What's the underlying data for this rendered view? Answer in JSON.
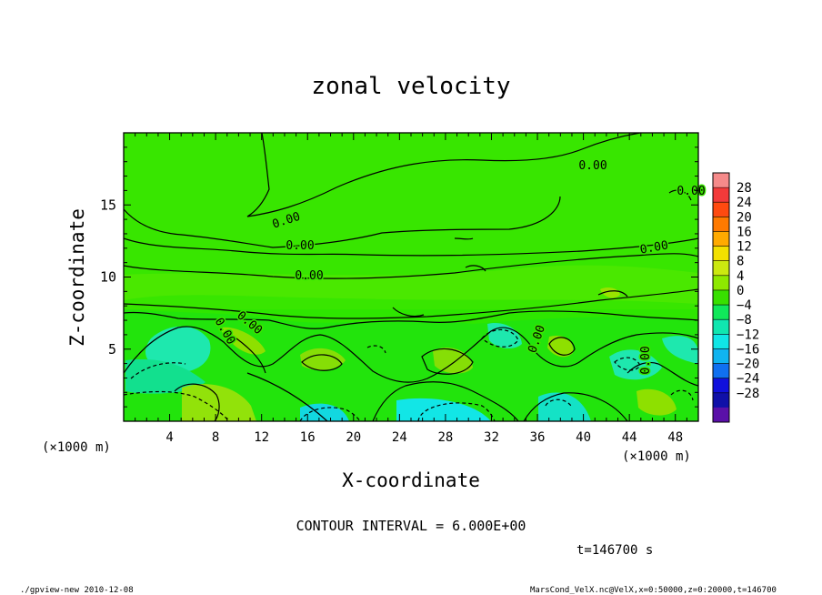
{
  "chart_data": {
    "type": "heatmap",
    "title": "zonal velocity",
    "xlabel": "X-coordinate",
    "ylabel": "Z-coordinate",
    "x_unit": "(×1000 m)",
    "x_unit_right": "(×1000 m)",
    "xlim": [
      0,
      50
    ],
    "ylim": [
      0,
      20
    ],
    "x_ticks": [
      "4",
      "8",
      "12",
      "16",
      "20",
      "24",
      "28",
      "32",
      "36",
      "40",
      "44",
      "48"
    ],
    "y_ticks": [
      "5",
      "10",
      "15"
    ],
    "colorbar": {
      "levels": [
        "28",
        "24",
        "20",
        "16",
        "12",
        "8",
        "4",
        "0",
        "−4",
        "−8",
        "−12",
        "−16",
        "−20",
        "−24",
        "−28"
      ],
      "colors": [
        "#f58a8a",
        "#f23a3a",
        "#ff4a10",
        "#ff7a00",
        "#ffaa00",
        "#f2e000",
        "#cce810",
        "#8ee800",
        "#38e000",
        "#10e85a",
        "#10e6b0",
        "#10e6e6",
        "#10b4f0",
        "#1070f0",
        "#1010dc",
        "#1010a8",
        "#5a10a8"
      ]
    },
    "contour_labels": [
      "0.00",
      "0.00",
      "0.00",
      "0.00",
      "0.00",
      "0.00",
      "0.00",
      "0.00",
      "0.00",
      "0.00"
    ]
  },
  "annotations": {
    "contour_interval": "CONTOUR INTERVAL = 6.000E+00",
    "time": "t=146700 s",
    "footer_left": "./gpview-new  2010-12-08",
    "footer_right": "MarsCond_VelX.nc@VelX,x=0:50000,z=0:20000,t=146700"
  }
}
